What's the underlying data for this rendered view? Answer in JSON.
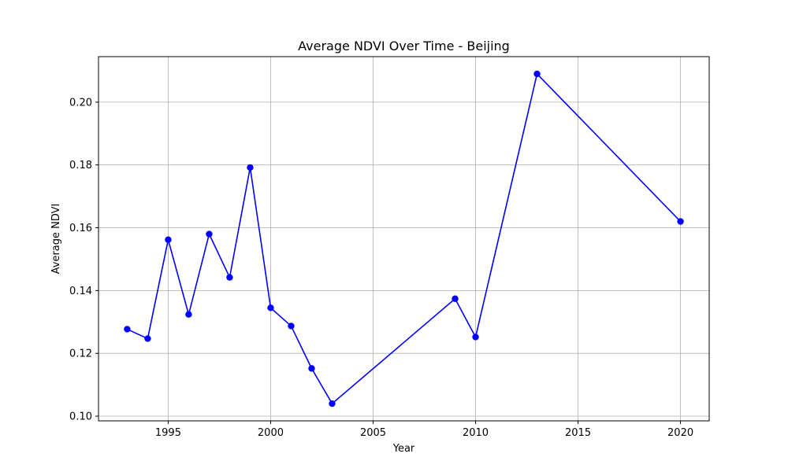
{
  "chart_data": {
    "type": "line",
    "title": "Average NDVI Over Time - Beijing",
    "xlabel": "Year",
    "ylabel": "Average NDVI",
    "xlim": [
      1991.6,
      2021.4
    ],
    "ylim": [
      0.0985,
      0.2145
    ],
    "xticks": [
      1995,
      2000,
      2005,
      2010,
      2015,
      2020
    ],
    "yticks": [
      0.1,
      0.12,
      0.14,
      0.16,
      0.18,
      0.2
    ],
    "ytick_labels": [
      "0.10",
      "0.12",
      "0.14",
      "0.16",
      "0.18",
      "0.20"
    ],
    "grid": true,
    "color": "#0000ff",
    "marker": "circle",
    "series": [
      {
        "x": [
          1993,
          1994,
          1995,
          1996,
          1997,
          1998,
          1999,
          2000,
          2001,
          2002,
          2003,
          2009,
          2010,
          2013,
          2020
        ],
        "y": [
          0.1277,
          0.1247,
          0.1562,
          0.1324,
          0.158,
          0.1442,
          0.1792,
          0.1345,
          0.1287,
          0.1152,
          0.104,
          0.1374,
          0.1252,
          0.209,
          0.162
        ]
      }
    ]
  }
}
